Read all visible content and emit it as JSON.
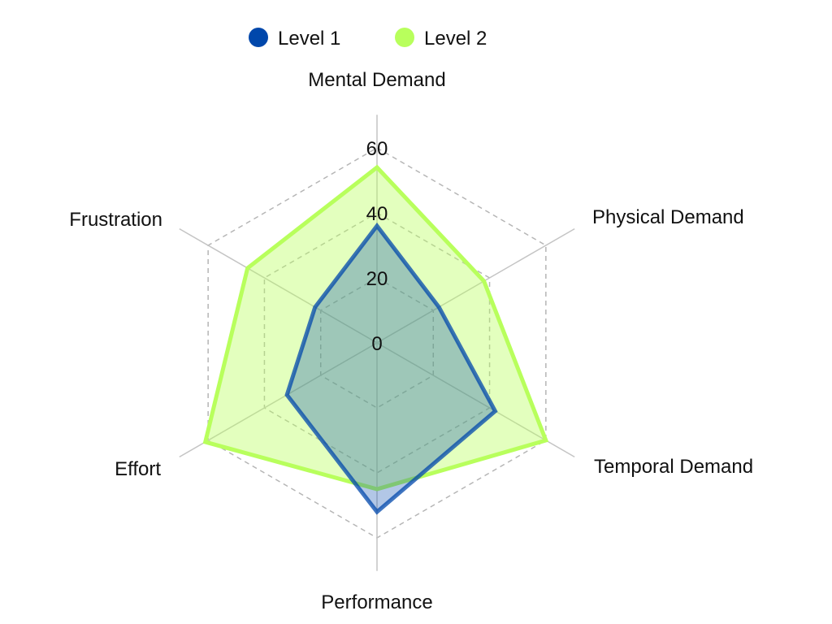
{
  "chart_data": {
    "type": "radar",
    "axes": [
      "Mental Demand",
      "Physical Demand",
      "Temporal Demand",
      "Performance",
      "Effort",
      "Frustration"
    ],
    "ticks": [
      0,
      20,
      40,
      60
    ],
    "range": [
      0,
      60
    ],
    "grid": true,
    "legend_position": "top",
    "series": [
      {
        "name": "Level 1",
        "values": [
          36,
          22,
          42,
          52,
          32,
          22
        ],
        "color": "#0047ab"
      },
      {
        "name": "Level 2",
        "values": [
          54,
          38,
          60,
          45,
          61,
          46
        ],
        "color": "#b8ff5c"
      }
    ]
  }
}
